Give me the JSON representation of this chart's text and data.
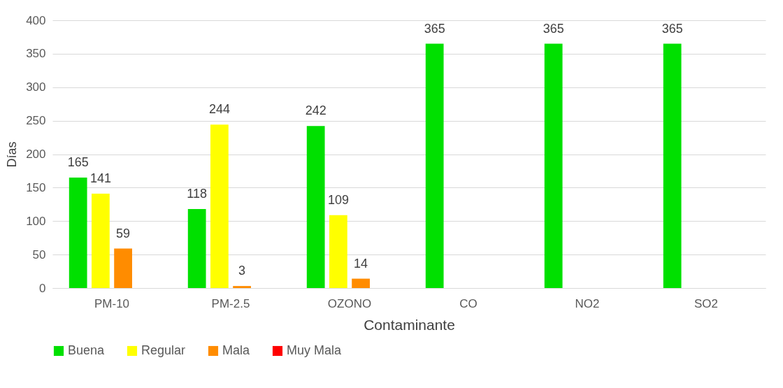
{
  "chart_data": {
    "type": "bar",
    "xlabel": "Contaminante",
    "ylabel": "Días",
    "categories": [
      "PM-10",
      "PM-2.5",
      "OZONO",
      "CO",
      "NO2",
      "SO2"
    ],
    "series": [
      {
        "name": "Buena",
        "color": "#00e000",
        "values": [
          165,
          118,
          242,
          365,
          365,
          365
        ],
        "value_labels": [
          "165",
          "118",
          "242",
          "365",
          "365",
          "365"
        ]
      },
      {
        "name": "Regular",
        "color": "#ffff00",
        "values": [
          141,
          244,
          109,
          0,
          0,
          0
        ],
        "value_labels": [
          "141",
          "244",
          "109",
          null,
          null,
          null
        ]
      },
      {
        "name": "Mala",
        "color": "#ff8c00",
        "values": [
          59,
          3,
          14,
          0,
          0,
          0
        ],
        "value_labels": [
          "59",
          "3",
          "14",
          null,
          null,
          null
        ]
      },
      {
        "name": "Muy Mala",
        "color": "#ff0000",
        "values": [
          0,
          0,
          0,
          0,
          0,
          0
        ],
        "value_labels": [
          null,
          null,
          null,
          null,
          null,
          null
        ]
      }
    ],
    "ylim": [
      0,
      400
    ],
    "yticks": [
      0,
      50,
      100,
      150,
      200,
      250,
      300,
      350,
      400
    ],
    "grid": "y",
    "legend": "bottom"
  }
}
